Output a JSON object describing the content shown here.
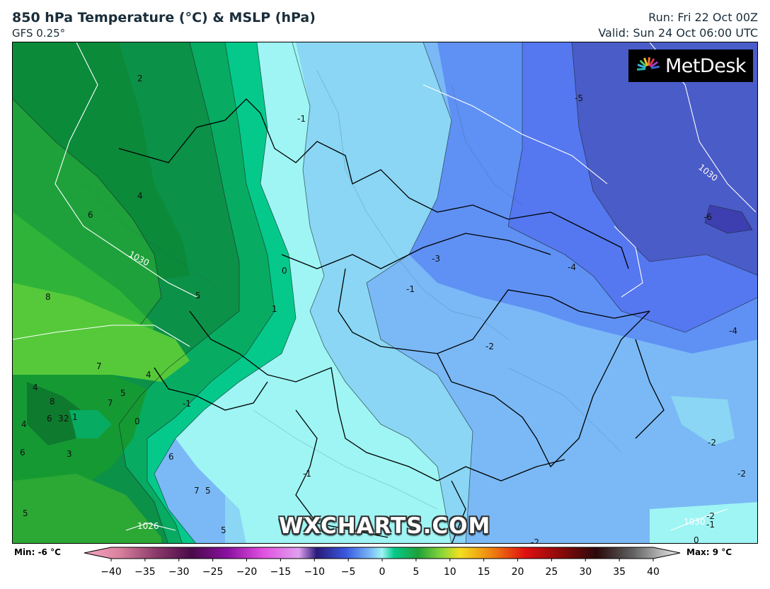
{
  "header": {
    "title": "850 hPa Temperature (°C) & MSLP (hPa)",
    "model": "GFS 0.25°",
    "run": "Run: Fri 22 Oct 00Z",
    "valid": "Valid: Sun 24 Oct 06:00 UTC"
  },
  "logo_text": "MetDesk",
  "watermark": "WXCHARTS.COM",
  "legend": {
    "min_label": "Min: -6 °C",
    "max_label": "Max: 9 °C",
    "ticks": [
      "−40",
      "−35",
      "−30",
      "−25",
      "−20",
      "−15",
      "−10",
      "−5",
      "0",
      "5",
      "10",
      "15",
      "20",
      "25",
      "30",
      "35",
      "40"
    ]
  },
  "map_labels": {
    "temperature": [
      "2",
      "-1",
      "-5",
      "4",
      "6",
      "-6",
      "1030",
      "-3",
      "-4",
      "0",
      "-1",
      "8",
      "5",
      "1",
      "-4",
      "-2",
      "7",
      "4",
      "4",
      "5",
      "-1",
      "8",
      "6",
      "3",
      "2",
      "1",
      "7",
      "0",
      "-2",
      "-2",
      "6",
      "4",
      "6",
      "3",
      "-1",
      "5",
      "7",
      "5",
      "1026",
      "5",
      "-2",
      "0",
      "-2",
      "-1",
      "1030"
    ],
    "isobars": [
      "1030",
      "1030",
      "1026",
      "1030"
    ]
  },
  "colors": {
    "cold_blue": "#5577f0",
    "deep_blue": "#4a5cc8",
    "light_cyan": "#9ef5f4",
    "sky": "#8ad6f4",
    "green": "#1ea13a",
    "dark_green": "#0e7a2e"
  }
}
